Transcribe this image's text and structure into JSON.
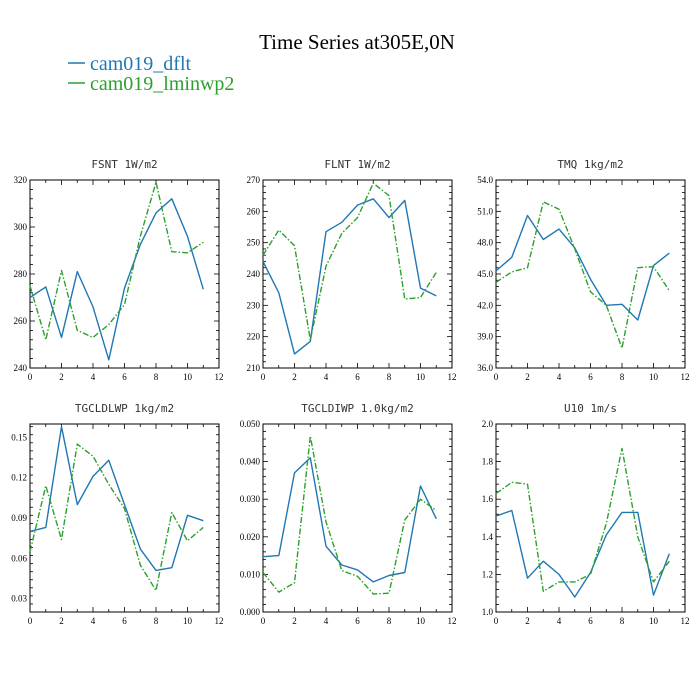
{
  "figure": {
    "title": "Time Series at305E,0N",
    "legend": [
      {
        "label": "cam019_dflt",
        "color": "#1f77b4",
        "dash": "solid"
      },
      {
        "label": "cam019_lminwp2",
        "color": "#2ca02c",
        "dash": "dashdot"
      }
    ]
  },
  "chart_data": [
    {
      "type": "line",
      "title": "FSNT  1W/m2",
      "xlim": [
        0,
        12
      ],
      "xticks": [
        "0",
        "2",
        "4",
        "6",
        "8",
        "10",
        "12"
      ],
      "ylim": [
        240,
        320
      ],
      "yticks": [
        "240",
        "260",
        "280",
        "300",
        "320"
      ],
      "x": [
        0,
        1,
        2,
        3,
        4,
        5,
        6,
        7,
        8,
        9,
        10,
        11
      ],
      "series": [
        {
          "name": "cam019_dflt",
          "values": [
            270.0,
            274.5,
            253.0,
            281.0,
            266.0,
            243.5,
            274.0,
            292.5,
            306.0,
            312.0,
            296.0,
            273.5
          ]
        },
        {
          "name": "cam019_lminwp2",
          "values": [
            275.0,
            252.0,
            281.5,
            256.0,
            253.0,
            258.5,
            267.0,
            296.0,
            319.0,
            289.5,
            289.0,
            293.5
          ]
        }
      ]
    },
    {
      "type": "line",
      "title": "FLNT  1W/m2",
      "xlim": [
        0,
        12
      ],
      "xticks": [
        "0",
        "2",
        "4",
        "6",
        "8",
        "10",
        "12"
      ],
      "ylim": [
        210,
        270
      ],
      "yticks": [
        "210",
        "220",
        "230",
        "240",
        "250",
        "260",
        "270"
      ],
      "x": [
        0,
        1,
        2,
        3,
        4,
        5,
        6,
        7,
        8,
        9,
        10,
        11
      ],
      "series": [
        {
          "name": "cam019_dflt",
          "values": [
            244.0,
            234.0,
            214.5,
            218.5,
            253.5,
            256.5,
            262.0,
            264.0,
            258.0,
            263.5,
            235.5,
            233.0
          ]
        },
        {
          "name": "cam019_lminwp2",
          "values": [
            246.0,
            254.0,
            249.0,
            219.0,
            242.5,
            253.0,
            258.0,
            269.0,
            265.0,
            232.0,
            232.5,
            240.5
          ]
        }
      ]
    },
    {
      "type": "line",
      "title": "TMQ  1kg/m2",
      "xlim": [
        0,
        12
      ],
      "xticks": [
        "0",
        "2",
        "4",
        "6",
        "8",
        "10",
        "12"
      ],
      "ylim": [
        36,
        54
      ],
      "yticks": [
        "36.0",
        "39.0",
        "42.0",
        "45.0",
        "48.0",
        "51.0",
        "54.0"
      ],
      "x": [
        0,
        1,
        2,
        3,
        4,
        5,
        6,
        7,
        8,
        9,
        10,
        11
      ],
      "series": [
        {
          "name": "cam019_dflt",
          "values": [
            45.3,
            46.6,
            50.6,
            48.3,
            49.3,
            47.5,
            44.5,
            42.0,
            42.1,
            40.6,
            45.8,
            47.0
          ]
        },
        {
          "name": "cam019_lminwp2",
          "values": [
            44.2,
            45.2,
            45.6,
            51.9,
            51.2,
            47.4,
            43.3,
            42.0,
            37.9,
            45.6,
            45.7,
            43.4
          ]
        }
      ]
    },
    {
      "type": "line",
      "title": "TGCLDLWP  1kg/m2",
      "xlim": [
        0,
        12
      ],
      "xticks": [
        "0",
        "2",
        "4",
        "6",
        "8",
        "10",
        "12"
      ],
      "ylim": [
        0.02,
        0.16
      ],
      "yticks": [
        "0.03",
        "0.06",
        "0.09",
        "0.12",
        "0.15"
      ],
      "x": [
        0,
        1,
        2,
        3,
        4,
        5,
        6,
        7,
        8,
        9,
        10,
        11
      ],
      "series": [
        {
          "name": "cam019_dflt",
          "values": [
            0.08,
            0.083,
            0.158,
            0.1,
            0.121,
            0.133,
            0.1,
            0.067,
            0.051,
            0.053,
            0.092,
            0.088
          ]
        },
        {
          "name": "cam019_lminwp2",
          "values": [
            0.065,
            0.114,
            0.074,
            0.145,
            0.136,
            0.115,
            0.097,
            0.055,
            0.036,
            0.094,
            0.073,
            0.083
          ]
        }
      ]
    },
    {
      "type": "line",
      "title": "TGCLDIWP  1.0kg/m2",
      "xlim": [
        0,
        12
      ],
      "xticks": [
        "0",
        "2",
        "4",
        "6",
        "8",
        "10",
        "12"
      ],
      "ylim": [
        0,
        0.05
      ],
      "yticks": [
        "0.000",
        "0.010",
        "0.020",
        "0.030",
        "0.040",
        "0.050"
      ],
      "x": [
        0,
        1,
        2,
        3,
        4,
        5,
        6,
        7,
        8,
        9,
        10,
        11
      ],
      "series": [
        {
          "name": "cam019_dflt",
          "values": [
            0.0147,
            0.015,
            0.037,
            0.041,
            0.0175,
            0.0125,
            0.0112,
            0.008,
            0.0097,
            0.0105,
            0.0335,
            0.0248
          ]
        },
        {
          "name": "cam019_lminwp2",
          "values": [
            0.0105,
            0.0053,
            0.0078,
            0.0468,
            0.024,
            0.011,
            0.0095,
            0.0048,
            0.005,
            0.0245,
            0.03,
            0.027
          ]
        }
      ]
    },
    {
      "type": "line",
      "title": "U10  1m/s",
      "xlim": [
        0,
        12
      ],
      "xticks": [
        "0",
        "2",
        "4",
        "6",
        "8",
        "10",
        "12"
      ],
      "ylim": [
        1.0,
        2.0
      ],
      "yticks": [
        "1.0",
        "1.2",
        "1.4",
        "1.6",
        "1.8",
        "2.0"
      ],
      "x": [
        0,
        1,
        2,
        3,
        4,
        5,
        6,
        7,
        8,
        9,
        10,
        11
      ],
      "series": [
        {
          "name": "cam019_dflt",
          "values": [
            1.51,
            1.54,
            1.18,
            1.27,
            1.2,
            1.08,
            1.21,
            1.41,
            1.53,
            1.53,
            1.09,
            1.31
          ]
        },
        {
          "name": "cam019_lminwp2",
          "values": [
            1.63,
            1.69,
            1.68,
            1.11,
            1.16,
            1.16,
            1.2,
            1.47,
            1.87,
            1.4,
            1.16,
            1.27
          ]
        }
      ]
    }
  ]
}
